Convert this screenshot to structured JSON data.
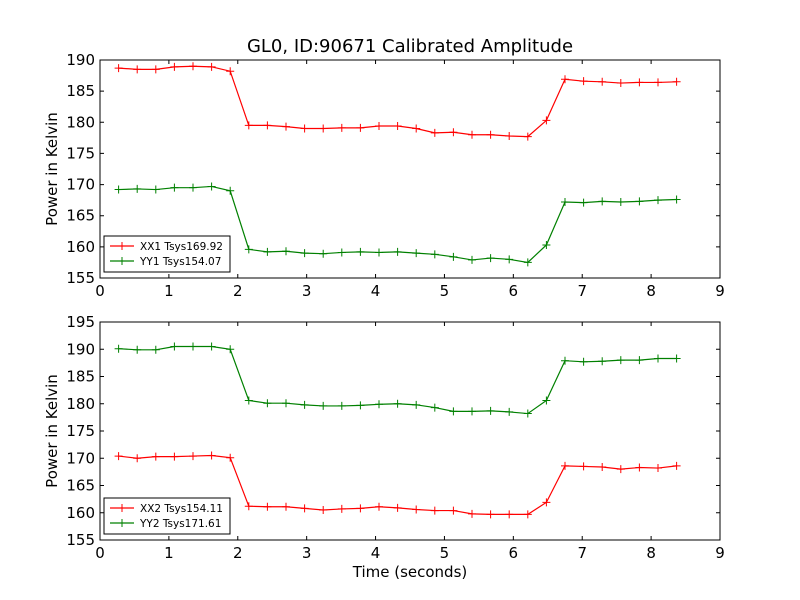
{
  "figure": {
    "title": "GL0, ID:90671 Calibrated Amplitude",
    "xlabel": "Time (seconds)"
  },
  "chart_data": [
    {
      "type": "line",
      "title": "GL0, ID:90671 Calibrated Amplitude",
      "xlabel": "",
      "ylabel": "Power in Kelvin",
      "xlim": [
        0,
        9
      ],
      "ylim": [
        155,
        190
      ],
      "xticks": [
        0,
        1,
        2,
        3,
        4,
        5,
        6,
        7,
        8,
        9
      ],
      "yticks": [
        155,
        160,
        165,
        170,
        175,
        180,
        185,
        190
      ],
      "grid": false,
      "legend_position": "lower-left",
      "x": [
        0.27,
        0.54,
        0.81,
        1.08,
        1.35,
        1.62,
        1.89,
        2.16,
        2.43,
        2.7,
        2.97,
        3.24,
        3.51,
        3.78,
        4.05,
        4.32,
        4.59,
        4.86,
        5.13,
        5.4,
        5.67,
        5.94,
        6.21,
        6.48,
        6.75,
        7.02,
        7.29,
        7.56,
        7.83,
        8.1,
        8.37
      ],
      "series": [
        {
          "name": "XX1 Tsys169.92",
          "color": "#ff0000",
          "values": [
            188.7,
            188.5,
            188.5,
            188.9,
            189.0,
            188.9,
            188.2,
            179.5,
            179.5,
            179.3,
            179.0,
            179.0,
            179.1,
            179.1,
            179.4,
            179.4,
            179.0,
            178.3,
            178.4,
            178.0,
            178.0,
            177.8,
            177.7,
            180.3,
            186.9,
            186.6,
            186.5,
            186.3,
            186.4,
            186.4,
            186.5
          ]
        },
        {
          "name": "YY1 Tsys154.07",
          "color": "#008000",
          "values": [
            169.2,
            169.3,
            169.2,
            169.5,
            169.5,
            169.7,
            169.0,
            159.6,
            159.2,
            159.3,
            159.0,
            158.9,
            159.1,
            159.2,
            159.1,
            159.2,
            159.0,
            158.8,
            158.4,
            157.9,
            158.2,
            158.0,
            157.5,
            160.3,
            167.2,
            167.1,
            167.3,
            167.2,
            167.3,
            167.5,
            167.6
          ]
        }
      ]
    },
    {
      "type": "line",
      "title": "",
      "xlabel": "Time (seconds)",
      "ylabel": "Power in Kelvin",
      "xlim": [
        0,
        9
      ],
      "ylim": [
        155,
        195
      ],
      "xticks": [
        0,
        1,
        2,
        3,
        4,
        5,
        6,
        7,
        8,
        9
      ],
      "yticks": [
        155,
        160,
        165,
        170,
        175,
        180,
        185,
        190,
        195
      ],
      "grid": false,
      "legend_position": "lower-left",
      "x": [
        0.27,
        0.54,
        0.81,
        1.08,
        1.35,
        1.62,
        1.89,
        2.16,
        2.43,
        2.7,
        2.97,
        3.24,
        3.51,
        3.78,
        4.05,
        4.32,
        4.59,
        4.86,
        5.13,
        5.4,
        5.67,
        5.94,
        6.21,
        6.48,
        6.75,
        7.02,
        7.29,
        7.56,
        7.83,
        8.1,
        8.37
      ],
      "series": [
        {
          "name": "XX2 Tsys154.11",
          "color": "#ff0000",
          "values": [
            170.4,
            170.0,
            170.3,
            170.3,
            170.4,
            170.5,
            170.1,
            161.2,
            161.1,
            161.1,
            160.8,
            160.5,
            160.7,
            160.8,
            161.1,
            160.9,
            160.6,
            160.4,
            160.4,
            159.8,
            159.7,
            159.7,
            159.7,
            161.9,
            168.6,
            168.5,
            168.4,
            168.0,
            168.3,
            168.2,
            168.6
          ]
        },
        {
          "name": "YY2 Tsys171.61",
          "color": "#008000",
          "values": [
            190.1,
            189.9,
            189.9,
            190.5,
            190.5,
            190.5,
            190.0,
            180.6,
            180.1,
            180.1,
            179.8,
            179.6,
            179.6,
            179.7,
            179.9,
            180.0,
            179.8,
            179.3,
            178.6,
            178.6,
            178.7,
            178.5,
            178.2,
            180.6,
            187.9,
            187.7,
            187.8,
            188.0,
            188.0,
            188.3,
            188.3
          ]
        }
      ]
    }
  ]
}
